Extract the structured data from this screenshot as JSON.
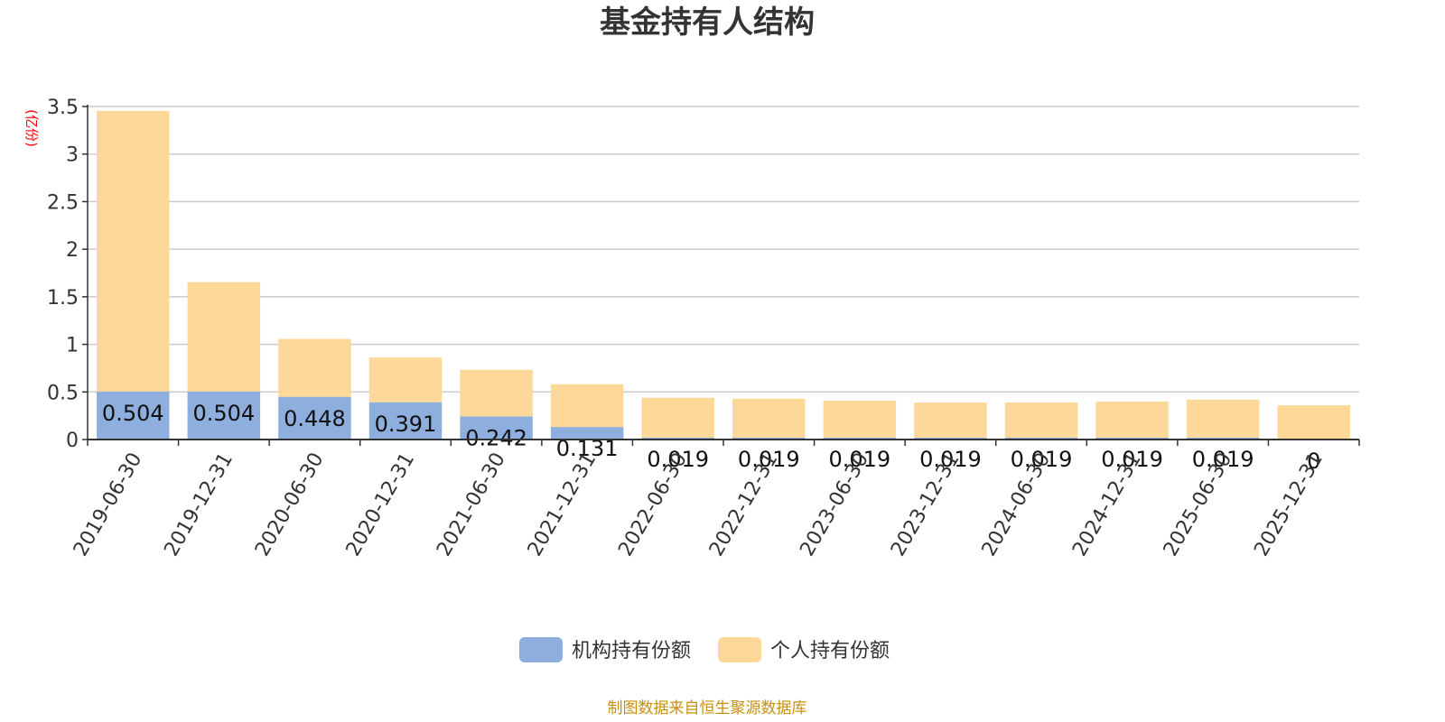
{
  "chart_data": {
    "type": "bar",
    "stacked": true,
    "title": "基金持有人结构",
    "y_unit": "(亿份)",
    "ylim": [
      0,
      3.5
    ],
    "y_ticks": [
      "0",
      "0.5",
      "1",
      "1.5",
      "2",
      "2.5",
      "3",
      "3.5"
    ],
    "grid": true,
    "legend_position": "bottom-center",
    "categories": [
      "2019-06-30",
      "2019-12-31",
      "2020-06-30",
      "2020-12-31",
      "2021-06-30",
      "2021-12-31",
      "2022-06-30",
      "2022-12-31",
      "2023-06-30",
      "2023-12-31",
      "2024-06-30",
      "2024-12-31",
      "2025-06-30",
      "2025-12-31"
    ],
    "series": [
      {
        "name": "机构持有份额",
        "color": "#8eaedd",
        "values": [
          0.504,
          0.504,
          0.448,
          0.391,
          0.242,
          0.131,
          0.019,
          0.019,
          0.019,
          0.019,
          0.019,
          0.019,
          0.019,
          0
        ],
        "labels": [
          "0.504",
          "0.504",
          "0.448",
          "0.391",
          "0.242",
          "0.131",
          "0.019",
          "0.019",
          "0.019",
          "0.019",
          "0.019",
          "0.019",
          "0.019",
          "0"
        ]
      },
      {
        "name": "个人持有份额",
        "color": "#fdd898",
        "values": [
          2.95,
          1.15,
          0.61,
          0.47,
          0.49,
          0.45,
          0.42,
          0.41,
          0.39,
          0.37,
          0.37,
          0.38,
          0.4,
          0.36
        ]
      }
    ],
    "source": "制图数据来自恒生聚源数据库"
  }
}
